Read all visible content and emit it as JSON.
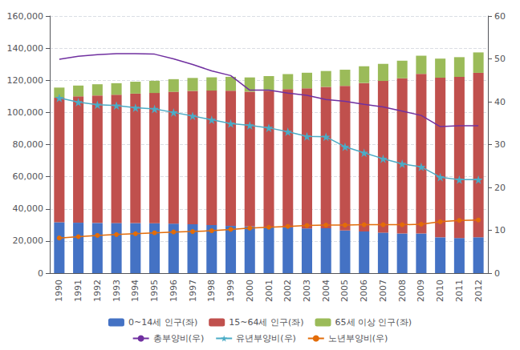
{
  "chart_data": {
    "type": "bar",
    "stacked": true,
    "grid": true,
    "legend": "bottom",
    "categories": [
      "1990",
      "1991",
      "1992",
      "1993",
      "1994",
      "1995",
      "1996",
      "1997",
      "1998",
      "1999",
      "2000",
      "2001",
      "2002",
      "2003",
      "2004",
      "2005",
      "2006",
      "2007",
      "2008",
      "2009",
      "2010",
      "2011",
      "2012"
    ],
    "series": [
      {
        "name": "0~14세 인구(좌)",
        "type": "bar",
        "color": "#4472c4",
        "values": [
          31659,
          31362,
          31218,
          31212,
          31135,
          31065,
          30800,
          30440,
          29958,
          29370,
          28979,
          28716,
          28390,
          27811,
          27947,
          26504,
          25961,
          25229,
          24660,
          24659,
          22259,
          21826,
          22287
        ]
      },
      {
        "name": "15~64세 인구(좌)",
        "type": "bar",
        "color": "#c0504d",
        "values": [
          77439,
          78669,
          79359,
          79787,
          80574,
          81028,
          82040,
          82969,
          83632,
          84177,
          83976,
          84827,
          86092,
          87199,
          87976,
          90023,
          92354,
          94365,
          96583,
          99338,
          99341,
          100283,
          102354
        ]
      },
      {
        "name": "65세 이상 인구(좌)",
        "type": "bar",
        "color": "#9bbb59",
        "values": [
          6368,
          6694,
          6962,
          7195,
          7400,
          7607,
          7862,
          8051,
          8259,
          8612,
          8827,
          9062,
          9377,
          9692,
          9857,
          10055,
          10419,
          10636,
          10956,
          11307,
          11894,
          12288,
          12714
        ]
      },
      {
        "name": "총부양비(우)",
        "type": "line",
        "axis": "y2",
        "color": "#7030a0",
        "marker": "none",
        "line_style": "solid",
        "values": [
          49.9,
          50.6,
          51.0,
          51.2,
          51.2,
          51.1,
          50.0,
          48.7,
          47.2,
          46.1,
          42.7,
          42.7,
          42.0,
          41.5,
          40.5,
          40.1,
          39.4,
          38.8,
          37.8,
          36.8,
          34.2,
          34.4,
          34.4
        ]
      },
      {
        "name": "유년부양비(우)",
        "type": "line",
        "axis": "y2",
        "color": "#4bacc6",
        "marker": "star",
        "line_style": "solid",
        "values": [
          40.9,
          39.9,
          39.3,
          39.1,
          38.6,
          38.3,
          37.5,
          36.7,
          35.8,
          34.9,
          34.5,
          33.9,
          33.0,
          31.9,
          31.8,
          29.5,
          28.1,
          26.7,
          25.5,
          24.8,
          22.4,
          21.8,
          21.8
        ]
      },
      {
        "name": "노년부양비(우)",
        "type": "line",
        "axis": "y2",
        "color": "#e36c09",
        "marker": "circle",
        "line_style": "solid",
        "values": [
          8.2,
          8.5,
          8.8,
          9.0,
          9.2,
          9.4,
          9.6,
          9.7,
          9.9,
          10.2,
          10.5,
          10.7,
          10.9,
          11.1,
          11.2,
          11.2,
          11.3,
          11.3,
          11.3,
          11.4,
          12.0,
          12.3,
          12.4
        ]
      }
    ],
    "ylim": [
      0,
      160000
    ],
    "yticks": [
      0,
      {
        "value": 20000,
        "label": "20,000"
      },
      {
        "value": 40000,
        "label": "40,000"
      },
      {
        "value": 60000,
        "label": "60,000"
      },
      {
        "value": 80000,
        "label": "80,000"
      },
      {
        "value": 100000,
        "label": "100,000"
      },
      {
        "value": 120000,
        "label": "120,000"
      },
      {
        "value": 140000,
        "label": "140,000"
      },
      {
        "value": 160000,
        "label": "160,000"
      }
    ],
    "y2lim": [
      0,
      60
    ],
    "y2ticks": [
      0,
      10,
      20,
      30,
      40,
      50,
      60
    ]
  }
}
